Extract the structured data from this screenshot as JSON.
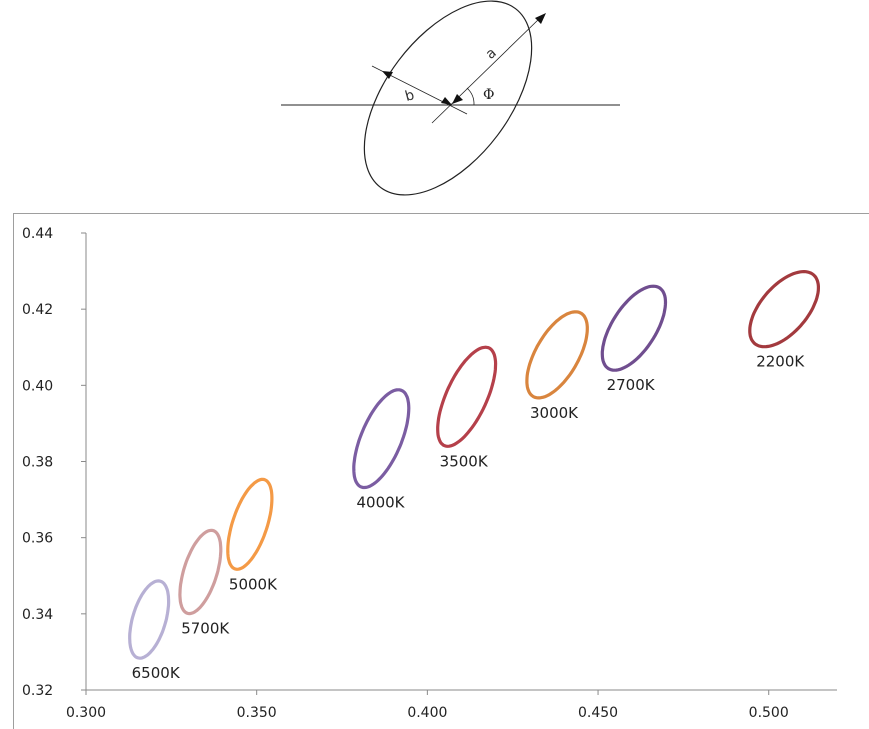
{
  "diagram": {
    "label_a": "a",
    "label_b": "b",
    "label_phi": "Φ"
  },
  "chart_data": {
    "type": "scatter",
    "title": "",
    "xlabel": "",
    "ylabel": "",
    "xlim": [
      0.3,
      0.52
    ],
    "ylim": [
      0.32,
      0.44
    ],
    "xticks": [
      "0.300",
      "0.350",
      "0.400",
      "0.450",
      "0.500"
    ],
    "yticks": [
      "0.32",
      "0.34",
      "0.36",
      "0.38",
      "0.40",
      "0.42",
      "0.44"
    ],
    "grid": false,
    "legend": "none",
    "series": [
      {
        "label": "6500K",
        "cx": 0.3185,
        "cy": 0.3385,
        "a": 0.0106,
        "b": 0.0048,
        "angle_deg": 71,
        "color": "#b7b0d4"
      },
      {
        "label": "5700K",
        "cx": 0.3335,
        "cy": 0.351,
        "a": 0.0115,
        "b": 0.0048,
        "angle_deg": 70,
        "color": "#cf9e9e"
      },
      {
        "label": "5000K",
        "cx": 0.348,
        "cy": 0.3635,
        "a": 0.0125,
        "b": 0.005,
        "angle_deg": 69,
        "color": "#f49a46"
      },
      {
        "label": "4000K",
        "cx": 0.3865,
        "cy": 0.386,
        "a": 0.014,
        "b": 0.0058,
        "angle_deg": 64,
        "color": "#7b5da2"
      },
      {
        "label": "3500K",
        "cx": 0.4115,
        "cy": 0.397,
        "a": 0.0144,
        "b": 0.0058,
        "angle_deg": 62,
        "color": "#b5404a"
      },
      {
        "label": "3000K",
        "cx": 0.438,
        "cy": 0.408,
        "a": 0.013,
        "b": 0.0061,
        "angle_deg": 56,
        "color": "#d9853e"
      },
      {
        "label": "2700K",
        "cx": 0.4605,
        "cy": 0.415,
        "a": 0.013,
        "b": 0.0062,
        "angle_deg": 53,
        "color": "#704e8f"
      },
      {
        "label": "2200K",
        "cx": 0.5045,
        "cy": 0.42,
        "a": 0.0125,
        "b": 0.0065,
        "angle_deg": 44,
        "color": "#a33a3e"
      }
    ]
  }
}
